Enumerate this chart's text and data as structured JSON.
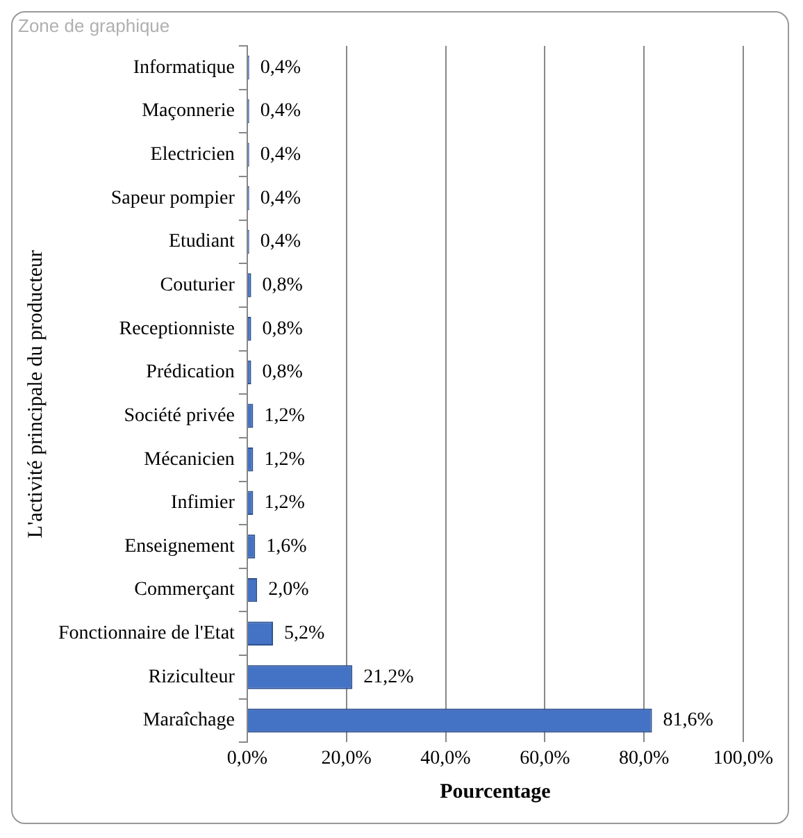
{
  "chart_data": {
    "type": "bar",
    "orientation": "horizontal",
    "ylabel": "L'activité principale du producteur",
    "xlabel": "Pourcentage",
    "annotations": [
      "Zone de graphique"
    ],
    "categories": [
      "Informatique",
      "Maçonnerie",
      "Electricien",
      "Sapeur pompier",
      "Etudiant",
      "Couturier",
      "Receptionniste",
      "Prédication",
      "Société privée",
      "Mécanicien",
      "Infimier",
      "Enseignement",
      "Commerçant",
      "Fonctionnaire de l'Etat",
      "Riziculteur",
      "Maraîchage"
    ],
    "values": [
      0.4,
      0.4,
      0.4,
      0.4,
      0.4,
      0.8,
      0.8,
      0.8,
      1.2,
      1.2,
      1.2,
      1.6,
      2.0,
      5.2,
      21.2,
      81.6
    ],
    "value_labels": [
      "0,4%",
      "0,4%",
      "0,4%",
      "0,4%",
      "0,4%",
      "0,8%",
      "0,8%",
      "0,8%",
      "1,2%",
      "1,2%",
      "1,2%",
      "1,6%",
      "2,0%",
      "5,2%",
      "21,2%",
      "81,6%"
    ],
    "color": "#4472c4",
    "xlim": [
      0,
      100
    ],
    "xticks": [
      {
        "value": 0,
        "label": "0,0%"
      },
      {
        "value": 20,
        "label": "20,0%"
      },
      {
        "value": 40,
        "label": "40,0%"
      },
      {
        "value": 60,
        "label": "60,0%"
      },
      {
        "value": 80,
        "label": "80,0%"
      },
      {
        "value": 100,
        "label": "100,0%"
      }
    ],
    "grid": "x",
    "legend": false
  }
}
